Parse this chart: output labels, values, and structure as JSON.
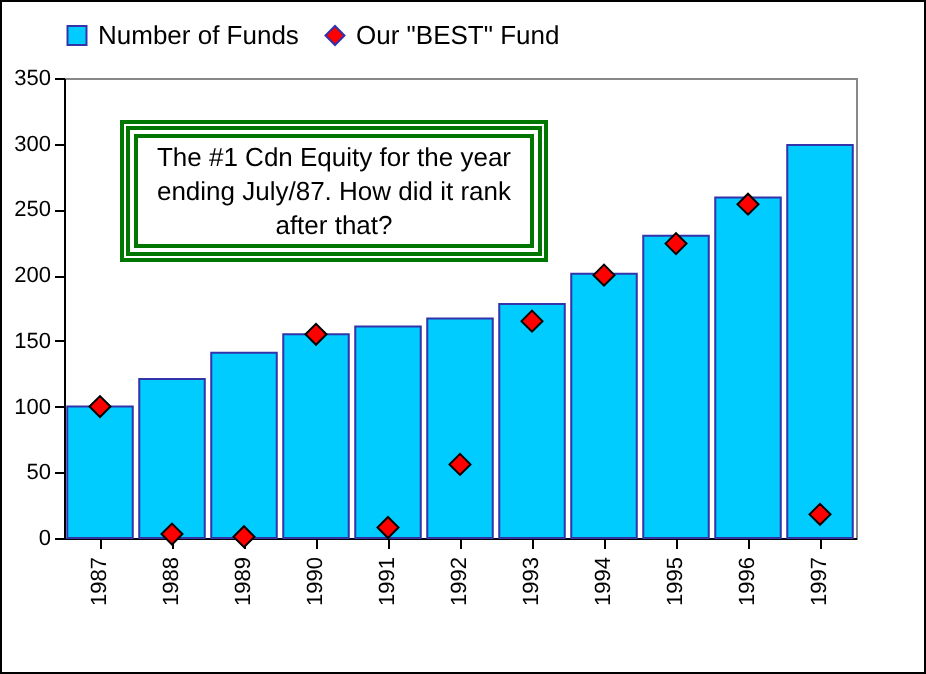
{
  "chart_data": {
    "type": "bar",
    "categories": [
      "1987",
      "1988",
      "1989",
      "1990",
      "1991",
      "1992",
      "1993",
      "1994",
      "1995",
      "1996",
      "1997"
    ],
    "series": [
      {
        "name": "Number of Funds",
        "type": "bar",
        "color": "#00ccff",
        "values": [
          100,
          121,
          141,
          155,
          161,
          167,
          178,
          201,
          230,
          259,
          299
        ]
      },
      {
        "name": "Our \"BEST\" Fund",
        "type": "scatter",
        "color": "#ff0000",
        "values": [
          100,
          3,
          1,
          155,
          8,
          56,
          165,
          200,
          224,
          254,
          18
        ]
      }
    ],
    "marker": "diamond",
    "legend": "top",
    "grid": false,
    "ylim": [
      0,
      350
    ],
    "yticks": [
      0,
      50,
      100,
      150,
      200,
      250,
      300,
      350
    ],
    "annotations": [
      "The #1 Cdn Equity for the year ending July/87. How did it rank after that?"
    ]
  }
}
